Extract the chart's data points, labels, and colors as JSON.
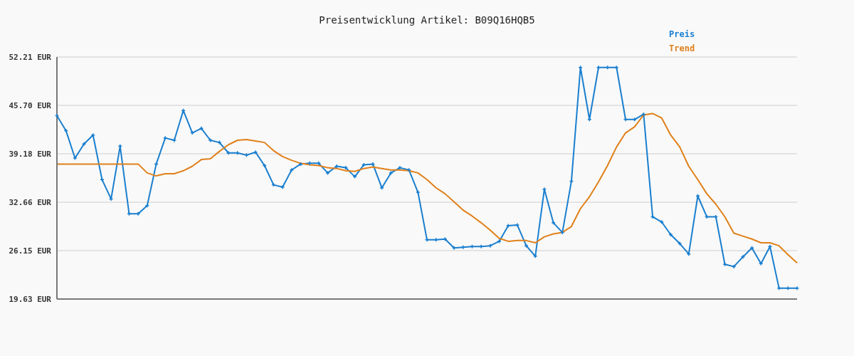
{
  "chart_data": {
    "type": "line",
    "title": "Preisentwicklung Artikel: B09Q16HQB5",
    "categories": [
      null,
      null,
      null,
      null,
      null,
      null,
      null,
      null,
      null,
      null,
      null,
      null,
      null,
      null,
      null,
      null,
      null,
      null,
      null,
      null,
      null,
      null,
      null,
      null,
      null,
      null,
      null,
      null,
      null,
      null,
      null,
      null,
      null,
      null,
      null,
      null,
      null,
      null,
      null,
      null,
      null,
      null,
      null,
      null,
      null,
      null,
      null,
      null,
      null,
      null,
      null,
      null,
      null,
      null,
      null,
      null,
      null,
      null,
      null,
      null,
      null,
      null,
      null,
      null,
      null,
      null,
      null,
      null,
      null,
      null,
      null,
      null,
      null,
      null,
      null,
      null,
      null,
      null,
      null,
      null,
      null,
      null,
      null
    ],
    "series": [
      {
        "name": "Preis",
        "color": "#1a7fcf",
        "marker": "cross",
        "values": [
          44.3,
          42.3,
          38.6,
          40.5,
          41.7,
          35.7,
          33.1,
          40.2,
          31.1,
          31.1,
          32.2,
          37.8,
          41.3,
          41.0,
          45.0,
          42.0,
          42.6,
          41.0,
          40.7,
          39.3,
          39.3,
          39.0,
          39.4,
          37.6,
          35.0,
          34.7,
          37.0,
          37.8,
          37.9,
          37.9,
          36.6,
          37.5,
          37.3,
          36.1,
          37.7,
          37.8,
          34.6,
          36.6,
          37.3,
          37.0,
          34.0,
          27.6,
          27.6,
          27.7,
          26.5,
          26.6,
          26.7,
          26.7,
          26.8,
          27.4,
          29.5,
          29.6,
          26.8,
          25.4,
          34.4,
          29.9,
          28.6,
          35.5,
          50.8,
          43.8,
          50.8,
          50.8,
          50.8,
          43.8,
          43.8,
          44.5,
          30.7,
          30.0,
          28.3,
          27.1,
          25.7,
          33.5,
          30.7,
          30.7,
          24.3,
          24.0,
          25.3,
          26.5,
          24.4,
          26.7,
          21.1,
          21.1,
          21.1
        ]
      },
      {
        "name": "Trend",
        "color": "#e0801a",
        "marker": "none",
        "values": [
          37.8,
          37.8,
          37.8,
          37.8,
          37.8,
          37.8,
          37.8,
          37.8,
          37.8,
          37.8,
          36.6,
          36.2,
          36.5,
          36.5,
          36.9,
          37.5,
          38.4,
          38.5,
          39.5,
          40.4,
          41.0,
          41.1,
          40.9,
          40.7,
          39.6,
          38.8,
          38.3,
          37.9,
          37.7,
          37.6,
          37.3,
          37.2,
          36.9,
          36.8,
          37.2,
          37.4,
          37.2,
          37.0,
          37.0,
          36.9,
          36.6,
          35.7,
          34.6,
          33.8,
          32.7,
          31.6,
          30.8,
          29.9,
          28.9,
          27.8,
          27.4,
          27.5,
          27.5,
          27.2,
          28.0,
          28.4,
          28.6,
          29.4,
          31.8,
          33.4,
          35.4,
          37.6,
          40.1,
          42.0,
          42.8,
          44.4,
          44.6,
          44.0,
          41.7,
          40.1,
          37.5,
          35.7,
          33.8,
          32.4,
          30.7,
          28.5,
          28.1,
          27.7,
          27.2,
          27.2,
          26.8,
          25.6,
          24.5
        ]
      }
    ],
    "ylim": [
      19.63,
      52.21
    ],
    "yticks": [
      {
        "value": 19.63,
        "label": "19.63 EUR"
      },
      {
        "value": 26.15,
        "label": "26.15 EUR"
      },
      {
        "value": 32.66,
        "label": "32.66 EUR"
      },
      {
        "value": 39.18,
        "label": "39.18 EUR"
      },
      {
        "value": 45.7,
        "label": "45.70 EUR"
      },
      {
        "value": 52.21,
        "label": "52.21 EUR"
      }
    ],
    "grid": "y",
    "legend": "top right",
    "line_style": "solid"
  }
}
